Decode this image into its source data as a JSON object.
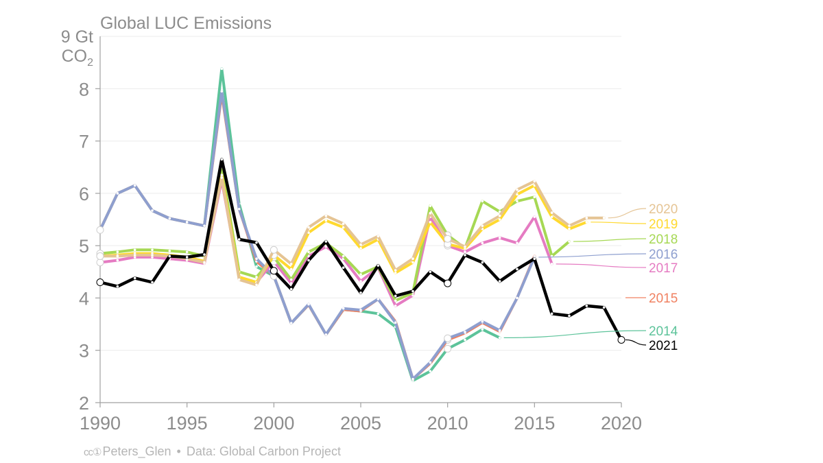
{
  "title": "Global LUC Emissions",
  "y_unit": {
    "number": "9",
    "unit_line1": "Gt",
    "unit_line2": "CO",
    "unit_sub": "2"
  },
  "footer": {
    "cc_icons": "cc①",
    "author": "Peters_Glen",
    "separator": "•",
    "source": "Data: Global Carbon Project"
  },
  "chart_data": {
    "type": "line",
    "title": "Global LUC Emissions",
    "ylabel": "Gt CO2",
    "xlabel": "",
    "xlim": [
      1990,
      2020
    ],
    "ylim": [
      2,
      9
    ],
    "x_ticks": [
      1990,
      1995,
      2000,
      2005,
      2010,
      2015,
      2020
    ],
    "y_ticks": [
      2,
      3,
      4,
      5,
      6,
      7,
      8
    ],
    "grid": true,
    "legend": "end-of-line labels on right",
    "series": [
      {
        "name": "2014",
        "color": "#5cc39a",
        "x": [
          1990,
          1991,
          1992,
          1993,
          1994,
          1995,
          1996,
          1997,
          1998,
          1999,
          2000,
          2001,
          2002,
          2003,
          2004,
          2005,
          2006,
          2007,
          2008,
          2009,
          2010,
          2011,
          2012,
          2013
        ],
        "values": [
          5.3,
          6.0,
          6.15,
          5.67,
          5.52,
          5.45,
          5.38,
          8.38,
          5.8,
          4.6,
          4.42,
          3.52,
          3.87,
          3.3,
          3.78,
          3.75,
          3.7,
          3.45,
          2.42,
          2.6,
          3.03,
          3.2,
          3.4,
          3.24
        ],
        "markers": [
          2000,
          2010
        ]
      },
      {
        "name": "2015",
        "color": "#f08060",
        "x": [
          1990,
          1991,
          1992,
          1993,
          1994,
          1995,
          1996,
          1997,
          1998,
          1999,
          2000,
          2001,
          2002,
          2003,
          2004,
          2005,
          2006,
          2007,
          2008,
          2009,
          2010,
          2011,
          2012,
          2013,
          2014,
          2015
        ],
        "values": [
          5.3,
          6.0,
          6.15,
          5.67,
          5.52,
          5.45,
          5.38,
          7.9,
          5.7,
          4.7,
          4.42,
          3.52,
          3.87,
          3.3,
          3.78,
          3.75,
          3.98,
          3.55,
          2.45,
          2.75,
          3.2,
          3.33,
          3.53,
          3.36,
          4.0,
          4.8
        ],
        "markers": [
          2000,
          2010
        ]
      },
      {
        "name": "2016",
        "color": "#8e9fcf",
        "x": [
          1990,
          1991,
          1992,
          1993,
          1994,
          1995,
          1996,
          1997,
          1998,
          1999,
          2000,
          2001,
          2002,
          2003,
          2004,
          2005,
          2006,
          2007,
          2008,
          2009,
          2010,
          2011,
          2012,
          2013,
          2014,
          2015
        ],
        "values": [
          5.3,
          6.0,
          6.15,
          5.67,
          5.52,
          5.45,
          5.38,
          7.95,
          5.7,
          4.75,
          4.42,
          3.52,
          3.88,
          3.3,
          3.8,
          3.77,
          3.98,
          3.53,
          2.45,
          2.77,
          3.23,
          3.35,
          3.55,
          3.38,
          4.0,
          4.78
        ],
        "markers": [
          1990,
          2000,
          2010
        ]
      },
      {
        "name": "2017",
        "color": "#e57bc2",
        "x": [
          1990,
          1991,
          1992,
          1993,
          1994,
          1995,
          1996,
          1997,
          1998,
          1999,
          2000,
          2001,
          2002,
          2003,
          2004,
          2005,
          2006,
          2007,
          2008,
          2009,
          2010,
          2011,
          2012,
          2013,
          2014,
          2015,
          2016
        ],
        "values": [
          4.68,
          4.72,
          4.78,
          4.78,
          4.75,
          4.72,
          4.66,
          6.25,
          4.4,
          4.3,
          4.7,
          4.28,
          4.8,
          4.98,
          4.75,
          4.32,
          4.58,
          3.85,
          4.05,
          5.55,
          5.0,
          4.88,
          5.05,
          5.15,
          5.05,
          5.55,
          4.65
        ],
        "markers": [
          1990,
          2000,
          2010
        ]
      },
      {
        "name": "2018",
        "color": "#a6d854",
        "x": [
          1990,
          1991,
          1992,
          1993,
          1994,
          1995,
          1996,
          1997,
          1998,
          1999,
          2000,
          2001,
          2002,
          2003,
          2004,
          2005,
          2006,
          2007,
          2008,
          2009,
          2010,
          2011,
          2012,
          2013,
          2014,
          2015,
          2016,
          2017
        ],
        "values": [
          4.85,
          4.88,
          4.92,
          4.92,
          4.9,
          4.88,
          4.8,
          6.5,
          4.5,
          4.4,
          4.78,
          4.35,
          4.88,
          5.05,
          4.8,
          4.45,
          4.6,
          3.95,
          4.1,
          5.76,
          5.2,
          4.95,
          5.85,
          5.65,
          5.85,
          5.93,
          4.8,
          5.08
        ],
        "markers": [
          1990,
          2000,
          2010
        ]
      },
      {
        "name": "2019",
        "color": "#ffd92f",
        "x": [
          1990,
          1991,
          1992,
          1993,
          1994,
          1995,
          1996,
          1997,
          1998,
          1999,
          2000,
          2001,
          2002,
          2003,
          2004,
          2005,
          2006,
          2007,
          2008,
          2009,
          2010,
          2011,
          2012,
          2013,
          2014,
          2015,
          2016,
          2017,
          2018
        ],
        "values": [
          4.8,
          4.82,
          4.85,
          4.85,
          4.82,
          4.78,
          4.7,
          6.35,
          4.4,
          4.3,
          4.82,
          4.55,
          5.25,
          5.48,
          5.35,
          4.95,
          5.12,
          4.48,
          4.68,
          5.45,
          5.03,
          4.95,
          5.32,
          5.5,
          5.98,
          6.15,
          5.55,
          5.32,
          5.45
        ],
        "markers": [
          1990,
          2000,
          2010
        ]
      },
      {
        "name": "2020",
        "color": "#e5c494",
        "x": [
          1990,
          1991,
          1992,
          1993,
          1994,
          1995,
          1996,
          1997,
          1998,
          1999,
          2000,
          2001,
          2002,
          2003,
          2004,
          2005,
          2006,
          2007,
          2008,
          2009,
          2010,
          2011,
          2012,
          2013,
          2014,
          2015,
          2016,
          2017,
          2018,
          2019
        ],
        "values": [
          4.8,
          4.8,
          4.82,
          4.82,
          4.8,
          4.75,
          4.68,
          6.3,
          4.35,
          4.25,
          4.92,
          4.65,
          5.35,
          5.57,
          5.42,
          5.02,
          5.18,
          4.53,
          4.75,
          5.62,
          5.13,
          4.98,
          5.38,
          5.57,
          6.07,
          6.23,
          5.63,
          5.38,
          5.53,
          5.53
        ],
        "markers": [
          1990,
          2000,
          2010
        ]
      },
      {
        "name": "2021",
        "color": "#000000",
        "x": [
          1990,
          1991,
          1992,
          1993,
          1994,
          1995,
          1996,
          1997,
          1998,
          1999,
          2000,
          2001,
          2002,
          2003,
          2004,
          2005,
          2006,
          2007,
          2008,
          2009,
          2010,
          2011,
          2012,
          2013,
          2014,
          2015,
          2016,
          2017,
          2018,
          2019,
          2020
        ],
        "values": [
          4.3,
          4.22,
          4.38,
          4.3,
          4.8,
          4.78,
          4.83,
          6.65,
          5.12,
          5.06,
          4.52,
          4.17,
          4.72,
          5.08,
          4.58,
          4.1,
          4.62,
          4.04,
          4.13,
          4.5,
          4.28,
          4.82,
          4.68,
          4.32,
          4.55,
          4.75,
          3.7,
          3.66,
          3.85,
          3.82,
          3.2
        ],
        "markers": [
          1990,
          2000,
          2010,
          2020
        ]
      }
    ]
  }
}
